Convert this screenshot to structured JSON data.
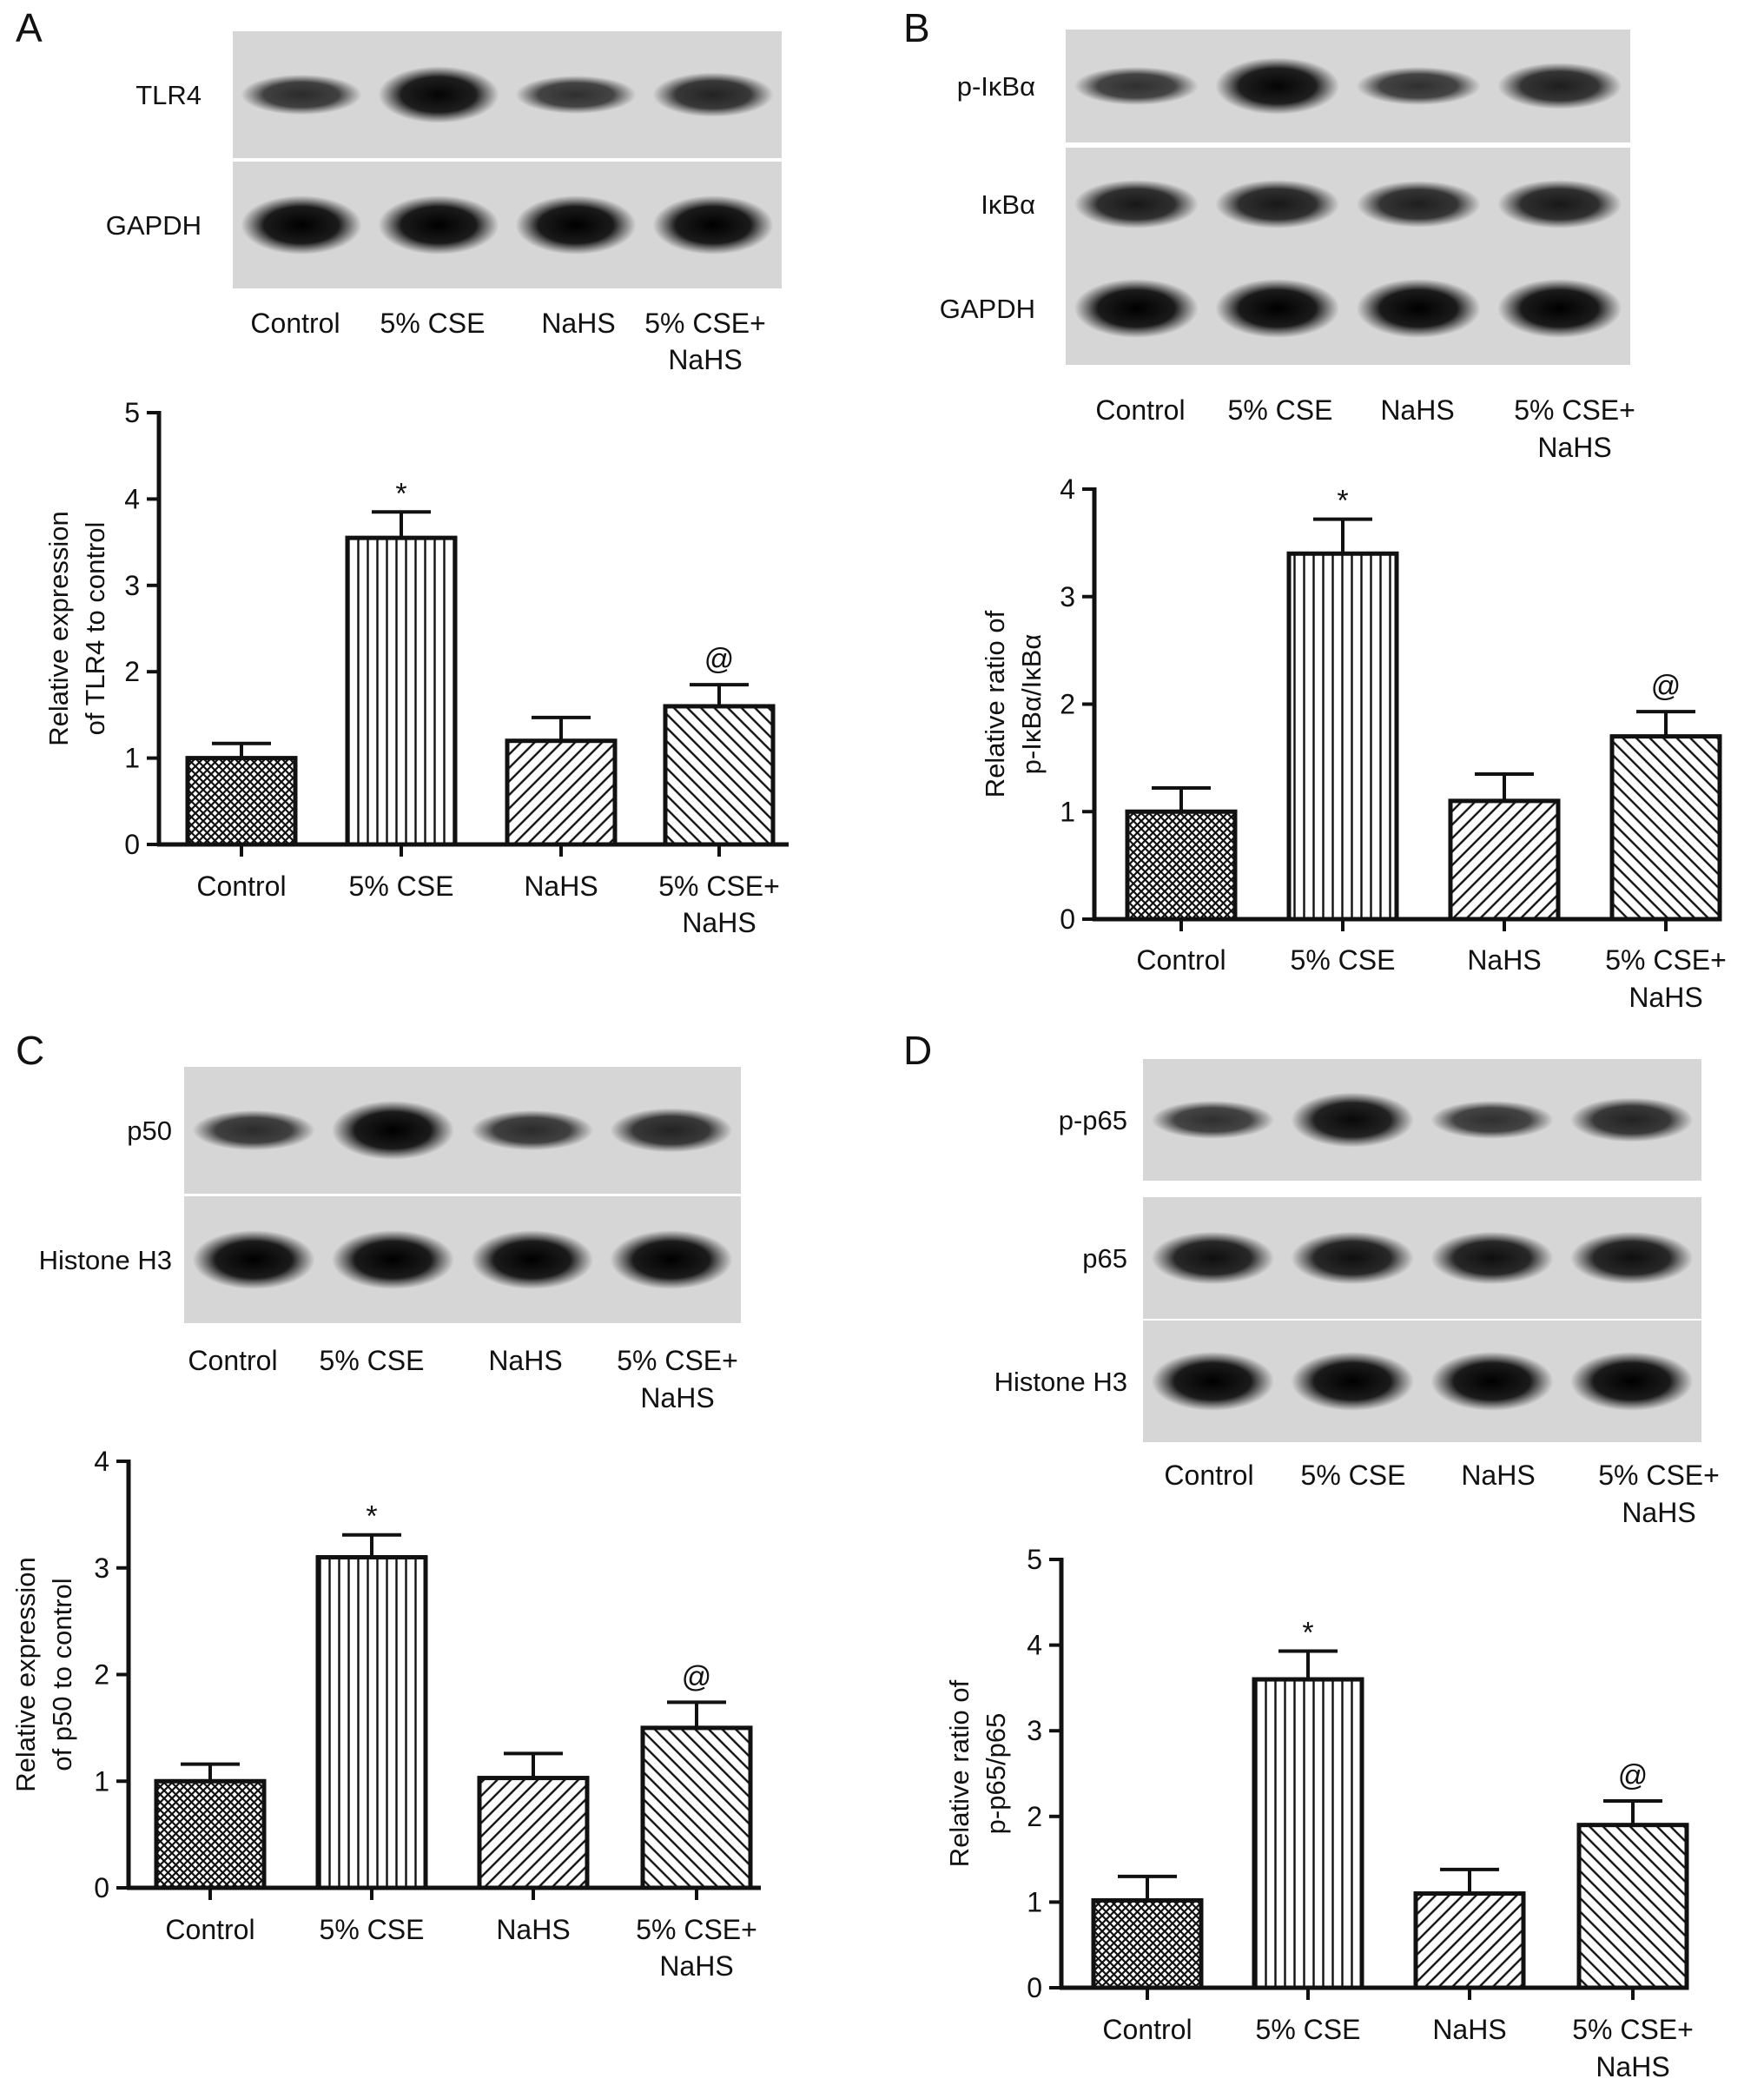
{
  "colors": {
    "blot_background": "#d6d6d6",
    "band": "#151515",
    "bar_fill": "#ffffff",
    "bar_stroke": "#111111",
    "axis": "#111111"
  },
  "panels": [
    {
      "letter": "A",
      "blots": [
        {
          "label": "TLR4",
          "band_intensity": [
            0.55,
            0.95,
            0.5,
            0.65
          ]
        },
        {
          "label": "GAPDH",
          "band_intensity": [
            1,
            1,
            1,
            1
          ]
        }
      ],
      "lanes": [
        {
          "line1": "Control",
          "line2": ""
        },
        {
          "line1": "5% CSE",
          "line2": ""
        },
        {
          "line1": "NaHS",
          "line2": ""
        },
        {
          "line1": "5% CSE+",
          "line2": "NaHS"
        }
      ],
      "chart": {
        "y_label_line1": "Relative expression",
        "y_label_line2": "of TLR4 to control"
      }
    },
    {
      "letter": "B",
      "blots": [
        {
          "label": "p-IκBα",
          "band_intensity": [
            0.5,
            0.95,
            0.5,
            0.7
          ]
        },
        {
          "label": "IκBα",
          "band_intensity": [
            0.75,
            0.75,
            0.7,
            0.75
          ]
        },
        {
          "label": "GAPDH",
          "band_intensity": [
            1,
            1,
            1,
            1
          ]
        }
      ],
      "lanes": [
        {
          "line1": "Control",
          "line2": ""
        },
        {
          "line1": "5% CSE",
          "line2": ""
        },
        {
          "line1": "NaHS",
          "line2": ""
        },
        {
          "line1": "5% CSE+",
          "line2": "NaHS"
        }
      ],
      "chart": {
        "y_label_line1": "Relative ratio of",
        "y_label_line2": "p-IκBα/IκBα"
      }
    },
    {
      "letter": "C",
      "blots": [
        {
          "label": "p50",
          "band_intensity": [
            0.55,
            1,
            0.55,
            0.65
          ]
        },
        {
          "label": "Histone H3",
          "band_intensity": [
            1,
            1,
            1,
            1
          ]
        }
      ],
      "lanes": [
        {
          "line1": "Control",
          "line2": ""
        },
        {
          "line1": "5% CSE",
          "line2": ""
        },
        {
          "line1": "NaHS",
          "line2": ""
        },
        {
          "line1": "5% CSE+",
          "line2": "NaHS"
        }
      ],
      "chart": {
        "y_label_line1": "Relative expression",
        "y_label_line2": "of p50 to control"
      }
    },
    {
      "letter": "D",
      "blots": [
        {
          "label": "p-p65",
          "band_intensity": [
            0.5,
            0.9,
            0.5,
            0.65
          ]
        },
        {
          "label": "p65",
          "band_intensity": [
            0.85,
            0.85,
            0.85,
            0.85
          ]
        },
        {
          "label": "Histone H3",
          "band_intensity": [
            1,
            1,
            1,
            1
          ]
        }
      ],
      "lanes": [
        {
          "line1": "Control",
          "line2": ""
        },
        {
          "line1": "5% CSE",
          "line2": ""
        },
        {
          "line1": "NaHS",
          "line2": ""
        },
        {
          "line1": "5% CSE+",
          "line2": "NaHS"
        }
      ],
      "chart": {
        "y_label_line1": "Relative ratio of",
        "y_label_line2": "p-p65/p65"
      }
    }
  ],
  "chart_data": [
    {
      "panel": "A",
      "type": "bar",
      "categories": [
        "Control",
        "5% CSE",
        "NaHS",
        "5% CSE+ NaHS"
      ],
      "values": [
        1.0,
        3.55,
        1.2,
        1.6
      ],
      "errors": [
        0.17,
        0.3,
        0.27,
        0.25
      ],
      "significance": [
        "",
        "*",
        "",
        "@"
      ],
      "patterns": [
        "crosshatch",
        "vertical",
        "diag-up",
        "diag-down"
      ],
      "ylabel": "Relative expression of TLR4 to control",
      "ylim": [
        0,
        5
      ],
      "yticks": [
        0,
        1,
        2,
        3,
        4,
        5
      ]
    },
    {
      "panel": "B",
      "type": "bar",
      "categories": [
        "Control",
        "5% CSE",
        "NaHS",
        "5% CSE+ NaHS"
      ],
      "values": [
        1.0,
        3.4,
        1.1,
        1.7
      ],
      "errors": [
        0.22,
        0.32,
        0.25,
        0.23
      ],
      "significance": [
        "",
        "*",
        "",
        "@"
      ],
      "patterns": [
        "crosshatch",
        "vertical",
        "diag-up",
        "diag-down"
      ],
      "ylabel": "Relative ratio of p-IκBα/IκBα",
      "ylim": [
        0,
        4
      ],
      "yticks": [
        0,
        1,
        2,
        3,
        4
      ]
    },
    {
      "panel": "C",
      "type": "bar",
      "categories": [
        "Control",
        "5% CSE",
        "NaHS",
        "5% CSE+ NaHS"
      ],
      "values": [
        1.0,
        3.1,
        1.03,
        1.5
      ],
      "errors": [
        0.16,
        0.21,
        0.23,
        0.24
      ],
      "significance": [
        "",
        "*",
        "",
        "@"
      ],
      "patterns": [
        "crosshatch",
        "vertical",
        "diag-up",
        "diag-down"
      ],
      "ylabel": "Relative expression of p50 to control",
      "ylim": [
        0,
        4
      ],
      "yticks": [
        0,
        1,
        2,
        3,
        4
      ]
    },
    {
      "panel": "D",
      "type": "bar",
      "categories": [
        "Control",
        "5% CSE",
        "NaHS",
        "5% CSE+ NaHS"
      ],
      "values": [
        1.02,
        3.6,
        1.1,
        1.9
      ],
      "errors": [
        0.28,
        0.33,
        0.28,
        0.28
      ],
      "significance": [
        "",
        "*",
        "",
        "@"
      ],
      "patterns": [
        "crosshatch",
        "vertical",
        "diag-up",
        "diag-down"
      ],
      "ylabel": "Relative ratio of p-p65/p65",
      "ylim": [
        0,
        5
      ],
      "yticks": [
        0,
        1,
        2,
        3,
        4,
        5
      ]
    }
  ]
}
